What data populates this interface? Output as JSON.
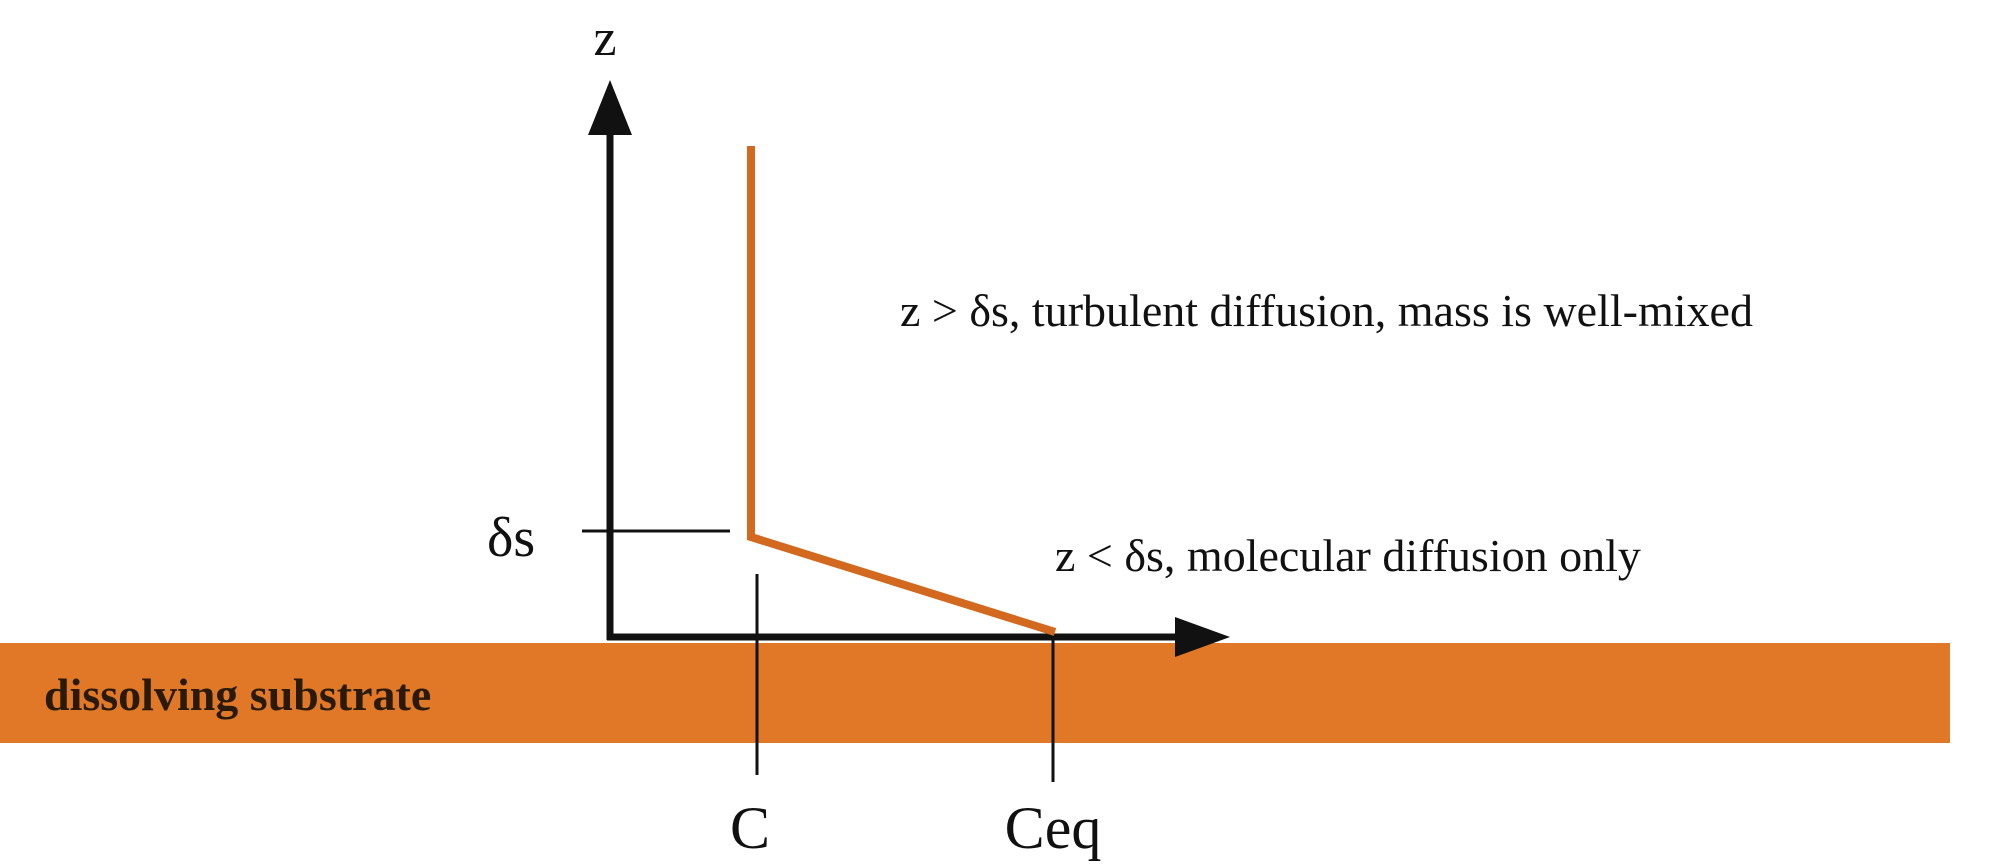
{
  "diagram": {
    "axis_labels": {
      "z": "z",
      "delta_s": "δs",
      "c": "C",
      "ceq": "Ceq"
    },
    "annotations": {
      "upper_region": "z > δs, turbulent diffusion, mass is well-mixed",
      "lower_region": "z < δs, molecular diffusion only"
    },
    "substrate_label": "dissolving substrate",
    "colors": {
      "substrate": "#E07828",
      "profile": "#D2691E",
      "axes": "#111111"
    }
  }
}
